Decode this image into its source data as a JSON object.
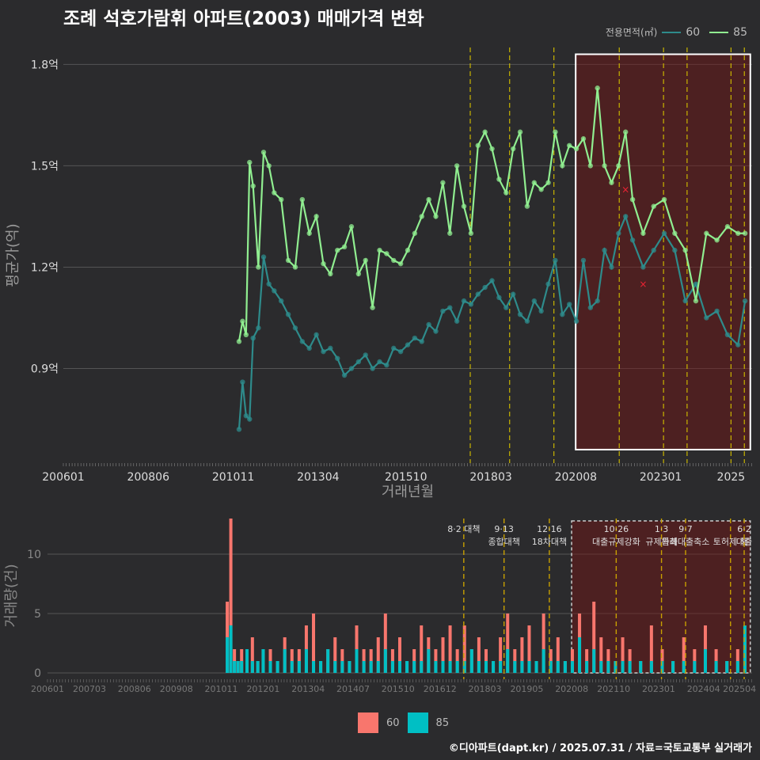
{
  "title": "조례 석호가람휘 아파트(2003) 매매가격 변화",
  "legend_top": {
    "title": "전용면적(㎡)",
    "items": [
      {
        "label": "60",
        "color": "#2e8b8b"
      },
      {
        "label": "85",
        "color": "#90ee90"
      }
    ]
  },
  "legend_bottom": [
    {
      "label": "60",
      "color": "#f8766d"
    },
    {
      "label": "85",
      "color": "#00bfc4"
    }
  ],
  "credit": "©디아파트(dapt.kr) / 2025.07.31 / 자료=국토교통부 실거래가",
  "chart_data": [
    {
      "type": "line",
      "title": "조례 석호가람휘 아파트(2003) 매매가격 변화",
      "xlabel": "거래년월",
      "ylabel": "평균가(억)",
      "x_ticks": [
        "200601",
        "200806",
        "201011",
        "201304",
        "201510",
        "201803",
        "202008",
        "202301",
        "2025"
      ],
      "y_ticks": [
        "0.9억",
        "1.2억",
        "1.5억",
        "1.8억"
      ],
      "ylim": [
        0.62,
        1.85
      ],
      "xlim": [
        2006.0,
        2025.6
      ],
      "policy_lines": [
        2017.58,
        2018.7,
        2019.96,
        2021.82,
        2023.08,
        2023.75,
        2025.0,
        2025.38
      ],
      "highlight_range": [
        2020.58,
        2025.55
      ],
      "series": [
        {
          "name": "60",
          "color": "#2e8b8b",
          "x": [
            2011.0,
            2011.1,
            2011.2,
            2011.3,
            2011.4,
            2011.55,
            2011.7,
            2011.85,
            2012.0,
            2012.2,
            2012.4,
            2012.6,
            2012.8,
            2013.0,
            2013.2,
            2013.4,
            2013.6,
            2013.8,
            2014.0,
            2014.2,
            2014.4,
            2014.6,
            2014.8,
            2015.0,
            2015.2,
            2015.4,
            2015.6,
            2015.8,
            2016.0,
            2016.2,
            2016.4,
            2016.6,
            2016.8,
            2017.0,
            2017.2,
            2017.4,
            2017.6,
            2017.8,
            2018.0,
            2018.2,
            2018.4,
            2018.6,
            2018.8,
            2019.0,
            2019.2,
            2019.4,
            2019.6,
            2019.8,
            2020.0,
            2020.2,
            2020.4,
            2020.6,
            2020.8,
            2021.0,
            2021.2,
            2021.4,
            2021.6,
            2021.8,
            2022.0,
            2022.2,
            2022.5,
            2022.8,
            2023.1,
            2023.4,
            2023.7,
            2024.0,
            2024.3,
            2024.6,
            2024.9,
            2025.2,
            2025.4
          ],
          "y": [
            0.72,
            0.86,
            0.76,
            0.75,
            0.99,
            1.02,
            1.23,
            1.15,
            1.13,
            1.1,
            1.06,
            1.02,
            0.98,
            0.96,
            1.0,
            0.95,
            0.96,
            0.93,
            0.88,
            0.9,
            0.92,
            0.94,
            0.9,
            0.92,
            0.91,
            0.96,
            0.95,
            0.97,
            0.99,
            0.98,
            1.03,
            1.01,
            1.07,
            1.08,
            1.04,
            1.1,
            1.09,
            1.12,
            1.14,
            1.16,
            1.11,
            1.08,
            1.12,
            1.06,
            1.04,
            1.1,
            1.07,
            1.15,
            1.22,
            1.06,
            1.09,
            1.04,
            1.22,
            1.08,
            1.1,
            1.25,
            1.2,
            1.3,
            1.35,
            1.28,
            1.2,
            1.25,
            1.3,
            1.25,
            1.1,
            1.15,
            1.05,
            1.07,
            1.0,
            0.97,
            1.1
          ]
        },
        {
          "name": "85",
          "color": "#90ee90",
          "x": [
            2011.0,
            2011.1,
            2011.2,
            2011.3,
            2011.4,
            2011.55,
            2011.7,
            2011.85,
            2012.0,
            2012.2,
            2012.4,
            2012.6,
            2012.8,
            2013.0,
            2013.2,
            2013.4,
            2013.6,
            2013.8,
            2014.0,
            2014.2,
            2014.4,
            2014.6,
            2014.8,
            2015.0,
            2015.2,
            2015.4,
            2015.6,
            2015.8,
            2016.0,
            2016.2,
            2016.4,
            2016.6,
            2016.8,
            2017.0,
            2017.2,
            2017.4,
            2017.6,
            2017.8,
            2018.0,
            2018.2,
            2018.4,
            2018.6,
            2018.8,
            2019.0,
            2019.2,
            2019.4,
            2019.6,
            2019.8,
            2020.0,
            2020.2,
            2020.4,
            2020.6,
            2020.8,
            2021.0,
            2021.2,
            2021.4,
            2021.6,
            2021.8,
            2022.0,
            2022.2,
            2022.5,
            2022.8,
            2023.1,
            2023.4,
            2023.7,
            2024.0,
            2024.3,
            2024.6,
            2024.9,
            2025.2,
            2025.4
          ],
          "y": [
            0.98,
            1.04,
            1.0,
            1.51,
            1.44,
            1.2,
            1.54,
            1.5,
            1.42,
            1.4,
            1.22,
            1.2,
            1.4,
            1.3,
            1.35,
            1.21,
            1.18,
            1.25,
            1.26,
            1.32,
            1.18,
            1.22,
            1.08,
            1.25,
            1.24,
            1.22,
            1.21,
            1.25,
            1.3,
            1.35,
            1.4,
            1.35,
            1.45,
            1.3,
            1.5,
            1.38,
            1.3,
            1.56,
            1.6,
            1.55,
            1.46,
            1.42,
            1.55,
            1.6,
            1.38,
            1.45,
            1.43,
            1.45,
            1.6,
            1.5,
            1.56,
            1.55,
            1.58,
            1.5,
            1.73,
            1.5,
            1.45,
            1.5,
            1.6,
            1.4,
            1.3,
            1.38,
            1.4,
            1.3,
            1.25,
            1.1,
            1.3,
            1.28,
            1.32,
            1.3,
            1.3
          ]
        }
      ],
      "cancelled_marks": [
        {
          "x": 2022.0,
          "y": 1.43
        },
        {
          "x": 2022.5,
          "y": 1.15
        }
      ]
    },
    {
      "type": "bar",
      "xlabel": "",
      "ylabel": "거래량(건)",
      "x_ticks": [
        "200601",
        "200703",
        "200806",
        "200908",
        "201011",
        "201201",
        "201304",
        "201407",
        "201510",
        "201612",
        "201803",
        "201905",
        "202008",
        "202110",
        "202301",
        "202404",
        "202504"
      ],
      "y_ticks": [
        "0",
        "5",
        "10"
      ],
      "ylim": [
        0,
        13
      ],
      "policy_annotations": [
        {
          "x": 2017.58,
          "lines": [
            "8·2 대책"
          ]
        },
        {
          "x": 2018.7,
          "lines": [
            "9·13",
            "종합대책"
          ]
        },
        {
          "x": 2019.96,
          "lines": [
            "12·16",
            "18차대책"
          ]
        },
        {
          "x": 2021.82,
          "lines": [
            "10·26",
            "대출규제강화"
          ]
        },
        {
          "x": 2023.08,
          "lines": [
            "1·3",
            "규제완화"
          ]
        },
        {
          "x": 2023.75,
          "lines": [
            "9·7",
            "특례대출축소"
          ]
        },
        {
          "x": 2025.0,
          "lines": [
            "",
            "토허제 해"
          ]
        },
        {
          "x": 2025.38,
          "lines": [
            "6·2",
            "대출"
          ]
        }
      ],
      "highlight_range": [
        2020.58,
        2025.55
      ],
      "series": [
        {
          "name": "60",
          "color": "#f8766d"
        },
        {
          "name": "85",
          "color": "#00bfc4"
        }
      ],
      "x": [
        2011.0,
        2011.1,
        2011.2,
        2011.3,
        2011.4,
        2011.55,
        2011.7,
        2011.85,
        2012.0,
        2012.2,
        2012.4,
        2012.6,
        2012.8,
        2013.0,
        2013.2,
        2013.4,
        2013.6,
        2013.8,
        2014.0,
        2014.2,
        2014.4,
        2014.6,
        2014.8,
        2015.0,
        2015.2,
        2015.4,
        2015.6,
        2015.8,
        2016.0,
        2016.2,
        2016.4,
        2016.6,
        2016.8,
        2017.0,
        2017.2,
        2017.4,
        2017.6,
        2017.8,
        2018.0,
        2018.2,
        2018.4,
        2018.6,
        2018.8,
        2019.0,
        2019.2,
        2019.4,
        2019.6,
        2019.8,
        2020.0,
        2020.2,
        2020.4,
        2020.6,
        2020.8,
        2021.0,
        2021.2,
        2021.4,
        2021.6,
        2021.8,
        2022.0,
        2022.2,
        2022.5,
        2022.8,
        2023.1,
        2023.4,
        2023.7,
        2024.0,
        2024.3,
        2024.6,
        2024.9,
        2025.2,
        2025.4
      ],
      "values_60": [
        6,
        13,
        2,
        1,
        2,
        1,
        3,
        1,
        2,
        2,
        1,
        3,
        2,
        2,
        4,
        5,
        1,
        2,
        3,
        2,
        1,
        4,
        2,
        2,
        3,
        5,
        2,
        3,
        1,
        2,
        4,
        3,
        2,
        3,
        4,
        2,
        4,
        2,
        3,
        2,
        1,
        3,
        5,
        2,
        3,
        4,
        1,
        5,
        2,
        3,
        1,
        2,
        5,
        2,
        6,
        3,
        2,
        1,
        3,
        2,
        1,
        4,
        2,
        1,
        3,
        2,
        4,
        2,
        1,
        2,
        3
      ],
      "values_85": [
        3,
        4,
        1,
        1,
        1,
        2,
        1,
        1,
        2,
        1,
        1,
        2,
        1,
        1,
        2,
        1,
        1,
        2,
        1,
        1,
        1,
        2,
        1,
        1,
        1,
        2,
        1,
        1,
        1,
        1,
        1,
        2,
        1,
        1,
        1,
        1,
        1,
        2,
        1,
        1,
        1,
        1,
        2,
        1,
        1,
        1,
        1,
        2,
        1,
        1,
        1,
        1,
        3,
        1,
        2,
        1,
        1,
        1,
        1,
        1,
        1,
        1,
        1,
        1,
        1,
        1,
        2,
        1,
        1,
        1,
        4
      ]
    }
  ]
}
